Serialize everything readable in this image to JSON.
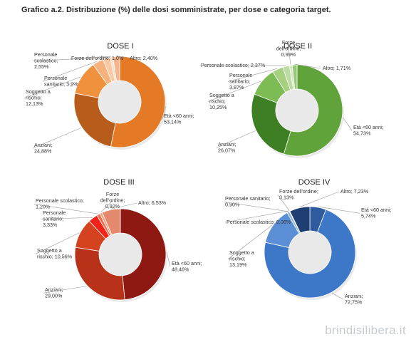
{
  "page": {
    "title": "Grafico a.2. Distribuzione (%) delle dosi somministrate, per dose e categoria target.",
    "watermark": "brindisilibera.it"
  },
  "chart_data": [
    {
      "type": "pie",
      "title": "DOSE I",
      "slices": [
        {
          "name": "Età <60 anni",
          "value": 53.14,
          "display": "53,14%",
          "color": "#e57a26"
        },
        {
          "name": "Anziani",
          "value": 24.88,
          "display": "24,88%",
          "color": "#b85c1c"
        },
        {
          "name": "Soggetto a rischio",
          "value": 12.13,
          "display": "12,13%",
          "color": "#f0913e"
        },
        {
          "name": "Personale sanitario",
          "value": 3.9,
          "display": "3,9%",
          "color": "#f6b27c"
        },
        {
          "name": "Personale scolastico",
          "value": 2.55,
          "display": "2,55%",
          "color": "#f9c9a3"
        },
        {
          "name": "Forze dell'ordine",
          "value": 1.0,
          "display": "1,0%",
          "color": "#fbdcc6"
        },
        {
          "name": "Altro",
          "value": 2.4,
          "display": "2,40%",
          "color": "#f4b58e"
        }
      ]
    },
    {
      "type": "pie",
      "title": "DOSE II",
      "slices": [
        {
          "name": "Età <60 anni",
          "value": 54.73,
          "display": "54,73%",
          "color": "#5fa33a"
        },
        {
          "name": "Anziani",
          "value": 26.07,
          "display": "26,07%",
          "color": "#3f7f24"
        },
        {
          "name": "Soggetto a rischio",
          "value": 10.25,
          "display": "10,25%",
          "color": "#7dbc55"
        },
        {
          "name": "Personale sanitario",
          "value": 3.87,
          "display": "3,87%",
          "color": "#a4d080"
        },
        {
          "name": "Personale scolastico",
          "value": 2.37,
          "display": "2,37%",
          "color": "#bddca3"
        },
        {
          "name": "Forze dell'ordine",
          "value": 0.99,
          "display": "0,99%",
          "color": "#d4e8c4"
        },
        {
          "name": "Altro",
          "value": 1.71,
          "display": "1,71%",
          "color": "#98c879"
        }
      ]
    },
    {
      "type": "pie",
      "title": "DOSE III",
      "slices": [
        {
          "name": "Età <60 anni",
          "value": 48.46,
          "display": "48,46%",
          "color": "#8e1812"
        },
        {
          "name": "Anziani",
          "value": 29.0,
          "display": "29,00%",
          "color": "#b8321a"
        },
        {
          "name": "Soggetto a rischio",
          "value": 10.56,
          "display": "10,56%",
          "color": "#d4421f"
        },
        {
          "name": "Personale sanitario",
          "value": 3.33,
          "display": "3,33%",
          "color": "#f2231a"
        },
        {
          "name": "Personale scolastico",
          "value": 1.2,
          "display": "1,20%",
          "color": "#f06e4a"
        },
        {
          "name": "Forze dell'ordine",
          "value": 0.92,
          "display": "0,92%",
          "color": "#f7a184"
        },
        {
          "name": "Altro",
          "value": 6.53,
          "display": "6,53%",
          "color": "#e4896b"
        }
      ]
    },
    {
      "type": "pie",
      "title": "DOSE IV",
      "slices": [
        {
          "name": "Età <60 anni",
          "value": 5.74,
          "display": "5,74%",
          "color": "#2e5a9e"
        },
        {
          "name": "Anziani",
          "value": 72.75,
          "display": "72,75%",
          "color": "#3d78c8"
        },
        {
          "name": "Soggetto a rischio",
          "value": 13.19,
          "display": "13,19%",
          "color": "#5a8fd6"
        },
        {
          "name": "Personale sanitario",
          "value": 0.9,
          "display": "0,90%",
          "color": "#8cb1e3"
        },
        {
          "name": "Personale scolastico",
          "value": 0.06,
          "display": "0,06%",
          "color": "#a9c4ea"
        },
        {
          "name": "Forze dell'ordine",
          "value": 0.13,
          "display": "0,13%",
          "color": "#c6d8f1"
        },
        {
          "name": "Altro",
          "value": 7.23,
          "display": "7,23%",
          "color": "#1f3f73"
        }
      ]
    }
  ]
}
